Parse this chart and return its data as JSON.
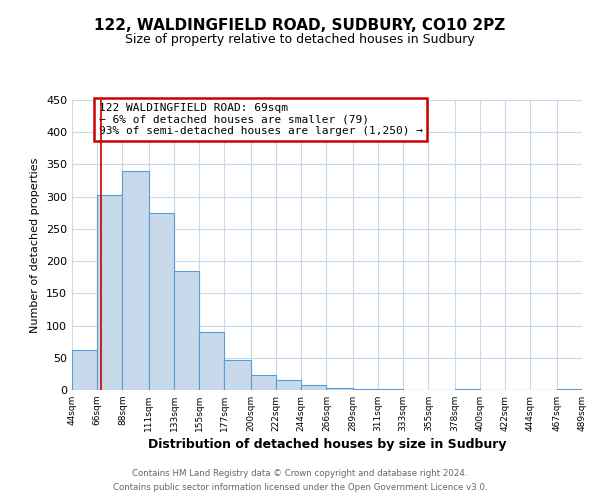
{
  "title": "122, WALDINGFIELD ROAD, SUDBURY, CO10 2PZ",
  "subtitle": "Size of property relative to detached houses in Sudbury",
  "xlabel": "Distribution of detached houses by size in Sudbury",
  "ylabel": "Number of detached properties",
  "bar_edges": [
    44,
    66,
    88,
    111,
    133,
    155,
    177,
    200,
    222,
    244,
    266,
    289,
    311,
    333,
    355,
    378,
    400,
    422,
    444,
    467,
    489
  ],
  "bar_heights": [
    62,
    303,
    340,
    275,
    185,
    90,
    46,
    24,
    16,
    8,
    3,
    2,
    1,
    0,
    0,
    1,
    0,
    0,
    0,
    1
  ],
  "bar_color": "#c9d9ec",
  "bar_edge_color": "#5b9bd5",
  "ylim": [
    0,
    450
  ],
  "yticks": [
    0,
    50,
    100,
    150,
    200,
    250,
    300,
    350,
    400,
    450
  ],
  "property_line_x": 69,
  "property_line_color": "#cc0000",
  "annotation_text": "122 WALDINGFIELD ROAD: 69sqm\n← 6% of detached houses are smaller (79)\n93% of semi-detached houses are larger (1,250) →",
  "annotation_box_color": "#cc0000",
  "tick_labels": [
    "44sqm",
    "66sqm",
    "88sqm",
    "111sqm",
    "133sqm",
    "155sqm",
    "177sqm",
    "200sqm",
    "222sqm",
    "244sqm",
    "266sqm",
    "289sqm",
    "311sqm",
    "333sqm",
    "355sqm",
    "378sqm",
    "400sqm",
    "422sqm",
    "444sqm",
    "467sqm",
    "489sqm"
  ],
  "footer_line1": "Contains HM Land Registry data © Crown copyright and database right 2024.",
  "footer_line2": "Contains public sector information licensed under the Open Government Licence v3.0.",
  "background_color": "#ffffff",
  "grid_color": "#c8d8e8",
  "title_fontsize": 11,
  "subtitle_fontsize": 9,
  "ylabel_fontsize": 8,
  "xlabel_fontsize": 9
}
